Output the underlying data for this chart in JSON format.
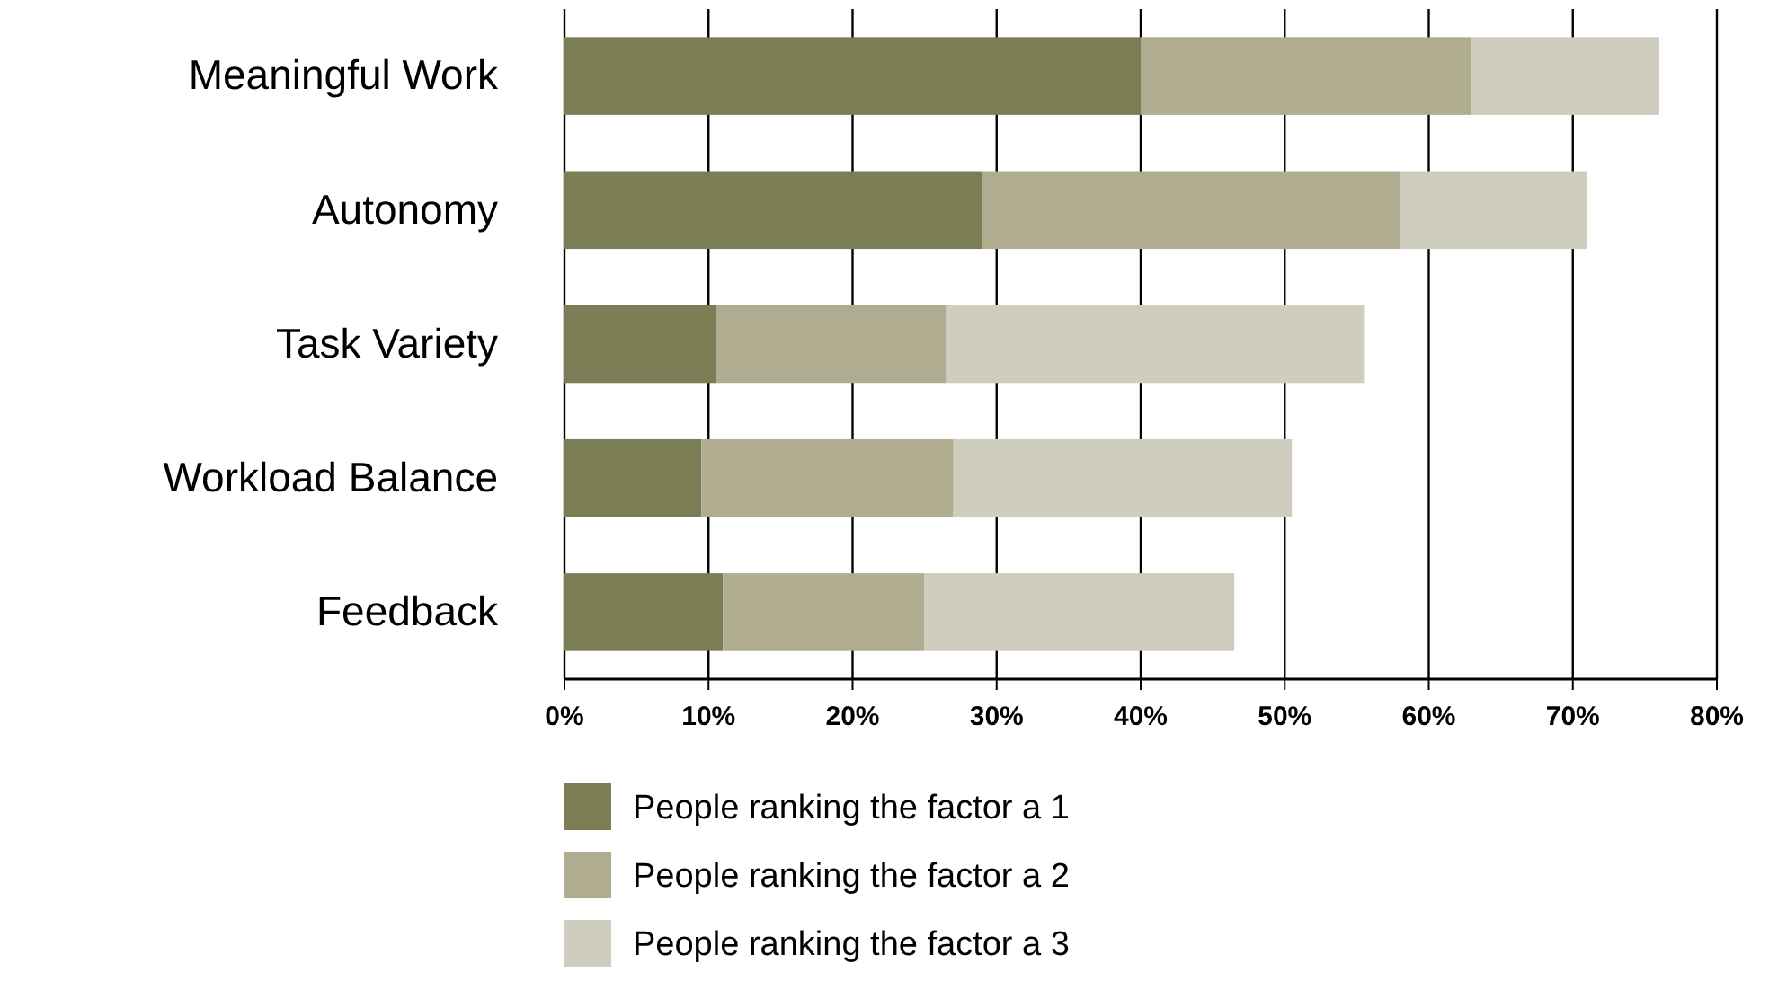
{
  "chart_data": {
    "type": "bar",
    "orientation": "horizontal",
    "stacked": true,
    "categories": [
      "Meaningful Work",
      "Autonomy",
      "Task Variety",
      "Workload Balance",
      "Feedback"
    ],
    "series": [
      {
        "name": "People ranking the factor a 1",
        "color": "#7b7d55",
        "values": [
          40,
          29,
          10.5,
          9.5,
          11
        ]
      },
      {
        "name": "People ranking the factor a 2",
        "color": "#afac90",
        "values": [
          23,
          29,
          16,
          17.5,
          14
        ]
      },
      {
        "name": "People ranking the factor a 3",
        "color": "#cfcdbd",
        "values": [
          13,
          13,
          29,
          23.5,
          21.5
        ]
      }
    ],
    "xlim": [
      0,
      80
    ],
    "xticks": [
      {
        "value": 0,
        "label": "0%"
      },
      {
        "value": 10,
        "label": "10%"
      },
      {
        "value": 20,
        "label": "20%"
      },
      {
        "value": 30,
        "label": "30%"
      },
      {
        "value": 40,
        "label": "40%"
      },
      {
        "value": 50,
        "label": "50%"
      },
      {
        "value": 60,
        "label": "60%"
      },
      {
        "value": 70,
        "label": "70%"
      },
      {
        "value": 80,
        "label": "80%"
      }
    ],
    "grid": "x",
    "legend": "bottom left"
  }
}
